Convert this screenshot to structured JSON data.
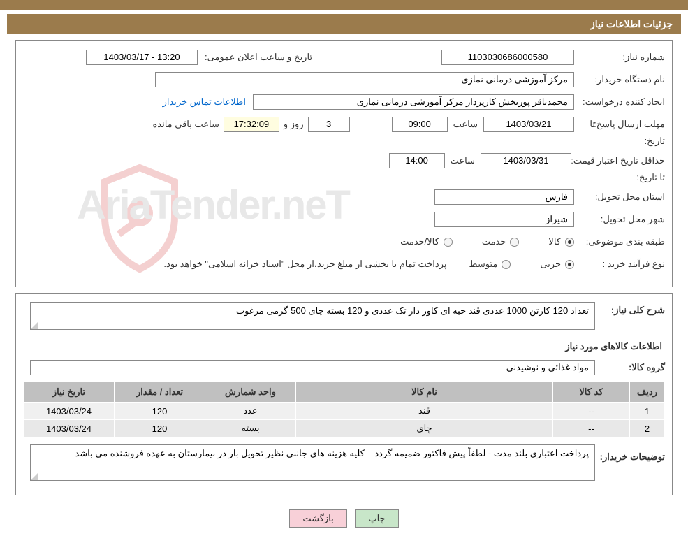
{
  "header": {
    "title": "جزئیات اطلاعات نیاز"
  },
  "fields": {
    "niaz_number_label": "شماره نیاز:",
    "niaz_number": "1103030686000580",
    "announce_date_label": "تاریخ و ساعت اعلان عمومی:",
    "announce_date": "13:20 - 1403/03/17",
    "buyer_org_label": "نام دستگاه خریدار:",
    "buyer_org": "مرکز آموزشی درمانی نمازی",
    "requester_label": "ایجاد کننده درخواست:",
    "requester": "محمدباقر پوربخش کارپرداز مرکز آموزشی درمانی نمازی",
    "contact_link": "اطلاعات تماس خریدار",
    "deadline_label": "مهلت ارسال پاسخ:",
    "until_date_label": "تا تاریخ:",
    "deadline_date": "1403/03/21",
    "time_label": "ساعت",
    "deadline_time": "09:00",
    "days_remaining": "3",
    "days_and_label": "روز و",
    "time_remaining": "17:32:09",
    "remaining_label": "ساعت باقي مانده",
    "validity_label": "حداقل تاریخ اعتبار قیمت:",
    "validity_date": "1403/03/31",
    "validity_time": "14:00",
    "province_label": "استان محل تحویل:",
    "province": "فارس",
    "city_label": "شهر محل تحویل:",
    "city": "شیراز",
    "category_label": "طبقه بندی موضوعی:",
    "cat_goods": "کالا",
    "cat_service": "خدمت",
    "cat_goods_service": "کالا/خدمت",
    "purchase_type_label": "نوع فرآیند خرید :",
    "type_partial": "جزیی",
    "type_medium": "متوسط",
    "payment_note": "پرداخت تمام یا بخشی از مبلغ خرید،از محل \"اسناد خزانه اسلامی\" خواهد بود."
  },
  "description": {
    "label": "شرح کلی نیاز:",
    "text": "تعداد 120 کارتن 1000 عددی قند حبه ای کاور دار تک عددی و 120 بسته چای 500 گرمی مرغوب"
  },
  "goods_section": {
    "title": "اطلاعات کالاهای مورد نیاز",
    "group_label": "گروه کالا:",
    "group_value": "مواد غذائی و نوشیدنی"
  },
  "table": {
    "headers": {
      "row": "ردیف",
      "code": "کد کالا",
      "name": "نام کالا",
      "unit": "واحد شمارش",
      "qty": "تعداد / مقدار",
      "date": "تاریخ نیاز"
    },
    "rows": [
      {
        "row": "1",
        "code": "--",
        "name": "قند",
        "unit": "عدد",
        "qty": "120",
        "date": "1403/03/24"
      },
      {
        "row": "2",
        "code": "--",
        "name": "چای",
        "unit": "بسته",
        "qty": "120",
        "date": "1403/03/24"
      }
    ],
    "col_widths": {
      "row": "50px",
      "code": "110px",
      "name": "auto",
      "unit": "130px",
      "qty": "130px",
      "date": "130px"
    }
  },
  "buyer_notes": {
    "label": "توضیحات خریدار:",
    "text": "پرداخت اعتباری بلند مدت - لطفاً پیش فاکتور ضمیمه گردد –  کلیه هزینه های جانبی نظیر تحویل بار در بیمارستان به عهده فروشنده می باشد"
  },
  "buttons": {
    "print": "چاپ",
    "back": "بازگشت"
  },
  "colors": {
    "brown_header": "#9b7b4c",
    "border_gray": "#888888",
    "table_header_bg": "#c0c0c0",
    "row_bg_1": "#f0f0f0",
    "row_bg_2": "#e8e8e8",
    "link_blue": "#0066cc",
    "btn_green": "#c8e6c9",
    "btn_pink": "#f8d0d8",
    "watermark": "#e8e8e8"
  }
}
